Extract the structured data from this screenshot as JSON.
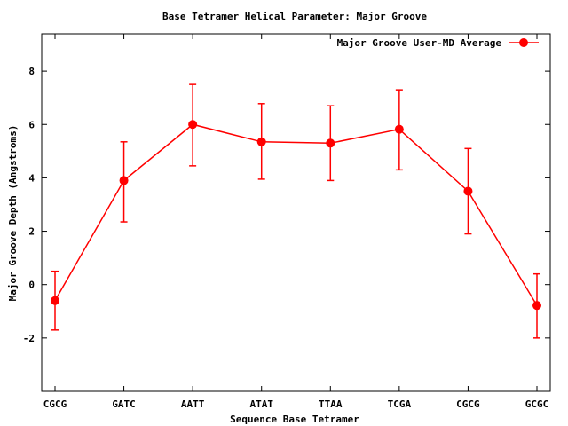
{
  "chart_data": {
    "type": "line",
    "title": "Base Tetramer Helical Parameter: Major Groove",
    "xlabel": "Sequence Base Tetramer",
    "ylabel": "Major Groove Depth (Angstroms)",
    "categories": [
      "CGCG",
      "GATC",
      "AATT",
      "ATAT",
      "TTAA",
      "TCGA",
      "CGCG",
      "GCGC"
    ],
    "ylim": [
      -4,
      9.4
    ],
    "yticks": [
      -2,
      0,
      2,
      4,
      6,
      8
    ],
    "grid": false,
    "legend_position": "top-right",
    "series": [
      {
        "name": "Major Groove User-MD Average",
        "color": "#ff0000",
        "values": [
          -0.6,
          3.9,
          6.0,
          5.35,
          5.3,
          5.82,
          3.5,
          -0.78
        ],
        "error_low": [
          -1.7,
          2.35,
          4.45,
          3.95,
          3.9,
          4.3,
          1.9,
          -2.0
        ],
        "error_high": [
          0.5,
          5.35,
          7.5,
          6.78,
          6.7,
          7.3,
          5.1,
          0.4
        ]
      }
    ]
  }
}
